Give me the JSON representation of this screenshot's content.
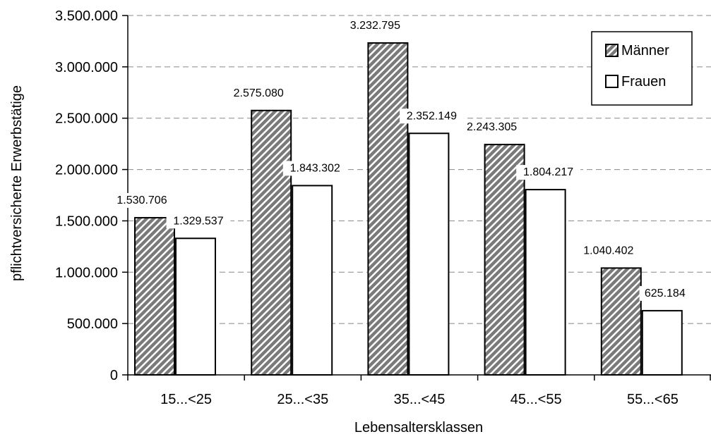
{
  "chart_data": {
    "type": "bar",
    "xlabel": "Lebensaltersklassen",
    "ylabel": "pflichtversicherte Erwerbstätige",
    "categories": [
      "15...<25",
      "25...<35",
      "35...<45",
      "45...<55",
      "55...<65"
    ],
    "series": [
      {
        "name": "Männer",
        "values": [
          1530706,
          2575080,
          3232795,
          2243305,
          1040402
        ],
        "labels": [
          "1.530.706",
          "2.575.080",
          "3.232.795",
          "2.243.305",
          "1.040.402"
        ],
        "fill": "hatched-gray",
        "color": "#808080"
      },
      {
        "name": "Frauen",
        "values": [
          1329537,
          1843302,
          2352149,
          1804217,
          625184
        ],
        "labels": [
          "1.329.537",
          "1.843.302",
          "2.352.149",
          "1.804.217",
          "625.184"
        ],
        "fill": "white",
        "color": "#ffffff"
      }
    ],
    "ylim": [
      0,
      3500000
    ],
    "yticks": [
      0,
      500000,
      1000000,
      1500000,
      2000000,
      2500000,
      3000000,
      3500000
    ],
    "ytick_labels": [
      "0",
      "500.000",
      "1.000.000",
      "1.500.000",
      "2.000.000",
      "2.500.000",
      "3.000.000",
      "3.500.000"
    ],
    "grid": "dashed-horizontal",
    "legend_position": "top-right"
  }
}
